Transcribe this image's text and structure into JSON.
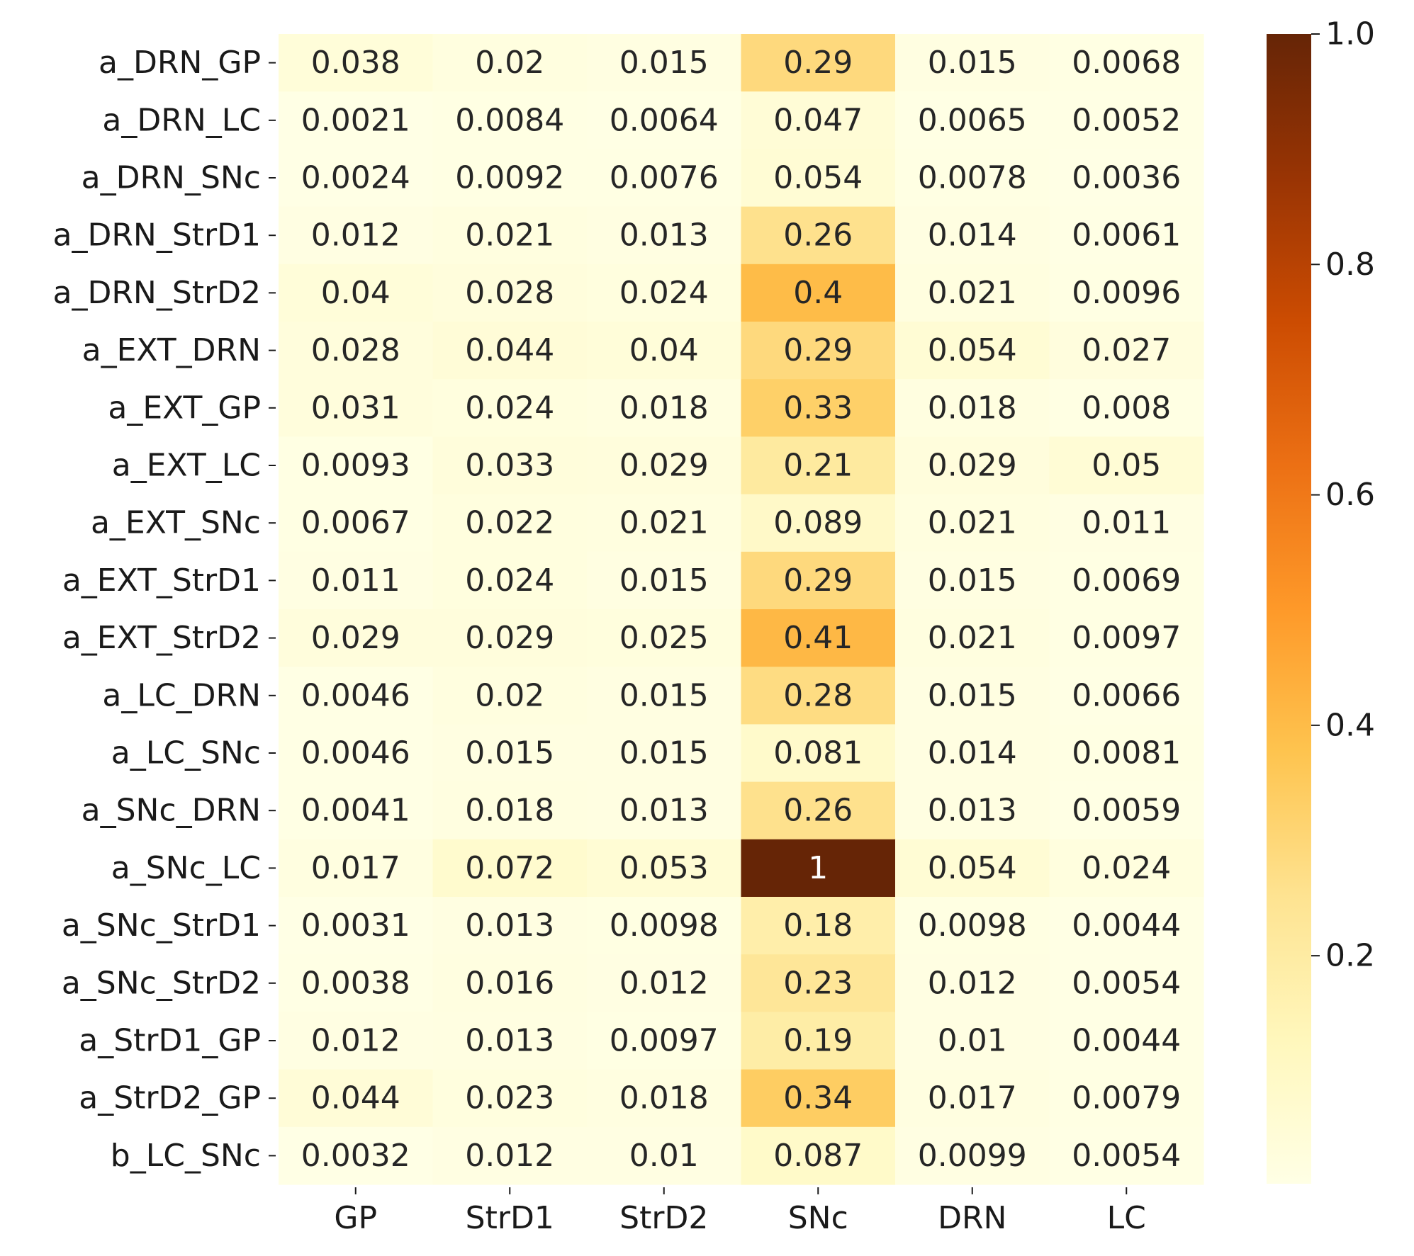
{
  "chart_data": {
    "type": "heatmap",
    "title": "",
    "xlabel": "",
    "ylabel": "",
    "columns": [
      "GP",
      "StrD1",
      "StrD2",
      "SNc",
      "DRN",
      "LC"
    ],
    "rows": [
      "a_DRN_GP",
      "a_DRN_LC",
      "a_DRN_SNc",
      "a_DRN_StrD1",
      "a_DRN_StrD2",
      "a_EXT_DRN",
      "a_EXT_GP",
      "a_EXT_LC",
      "a_EXT_SNc",
      "a_EXT_StrD1",
      "a_EXT_StrD2",
      "a_LC_DRN",
      "a_LC_SNc",
      "a_SNc_DRN",
      "a_SNc_LC",
      "a_SNc_StrD1",
      "a_SNc_StrD2",
      "a_StrD1_GP",
      "a_StrD2_GP",
      "b_LC_SNc"
    ],
    "values": [
      [
        0.038,
        0.02,
        0.015,
        0.29,
        0.015,
        0.0068
      ],
      [
        0.0021,
        0.0084,
        0.0064,
        0.047,
        0.0065,
        0.0052
      ],
      [
        0.0024,
        0.0092,
        0.0076,
        0.054,
        0.0078,
        0.0036
      ],
      [
        0.012,
        0.021,
        0.013,
        0.26,
        0.014,
        0.0061
      ],
      [
        0.04,
        0.028,
        0.024,
        0.4,
        0.021,
        0.0096
      ],
      [
        0.028,
        0.044,
        0.04,
        0.29,
        0.054,
        0.027
      ],
      [
        0.031,
        0.024,
        0.018,
        0.33,
        0.018,
        0.008
      ],
      [
        0.0093,
        0.033,
        0.029,
        0.21,
        0.029,
        0.05
      ],
      [
        0.0067,
        0.022,
        0.021,
        0.089,
        0.021,
        0.011
      ],
      [
        0.011,
        0.024,
        0.015,
        0.29,
        0.015,
        0.0069
      ],
      [
        0.029,
        0.029,
        0.025,
        0.41,
        0.021,
        0.0097
      ],
      [
        0.0046,
        0.02,
        0.015,
        0.28,
        0.015,
        0.0066
      ],
      [
        0.0046,
        0.015,
        0.015,
        0.081,
        0.014,
        0.0081
      ],
      [
        0.0041,
        0.018,
        0.013,
        0.26,
        0.013,
        0.0059
      ],
      [
        0.017,
        0.072,
        0.053,
        1,
        0.054,
        0.024
      ],
      [
        0.0031,
        0.013,
        0.0098,
        0.18,
        0.0098,
        0.0044
      ],
      [
        0.0038,
        0.016,
        0.012,
        0.23,
        0.012,
        0.0054
      ],
      [
        0.012,
        0.013,
        0.0097,
        0.19,
        0.01,
        0.0044
      ],
      [
        0.044,
        0.023,
        0.018,
        0.34,
        0.017,
        0.0079
      ],
      [
        0.0032,
        0.012,
        0.01,
        0.087,
        0.0099,
        0.0054
      ]
    ],
    "colorbar": {
      "colormap": "YlOrBr",
      "range": [
        0.0021,
        1.0
      ],
      "ticks": [
        0.2,
        0.4,
        0.6,
        0.8,
        1.0
      ],
      "tick_labels": [
        "0.2",
        "0.4",
        "0.6",
        "0.8",
        "1.0"
      ]
    },
    "colors": {
      "low": "#fffee5",
      "high": "#662506",
      "text_dark": "#262626",
      "text_light": "#ffffff"
    },
    "grid": false,
    "legend": "colorbar-right"
  }
}
